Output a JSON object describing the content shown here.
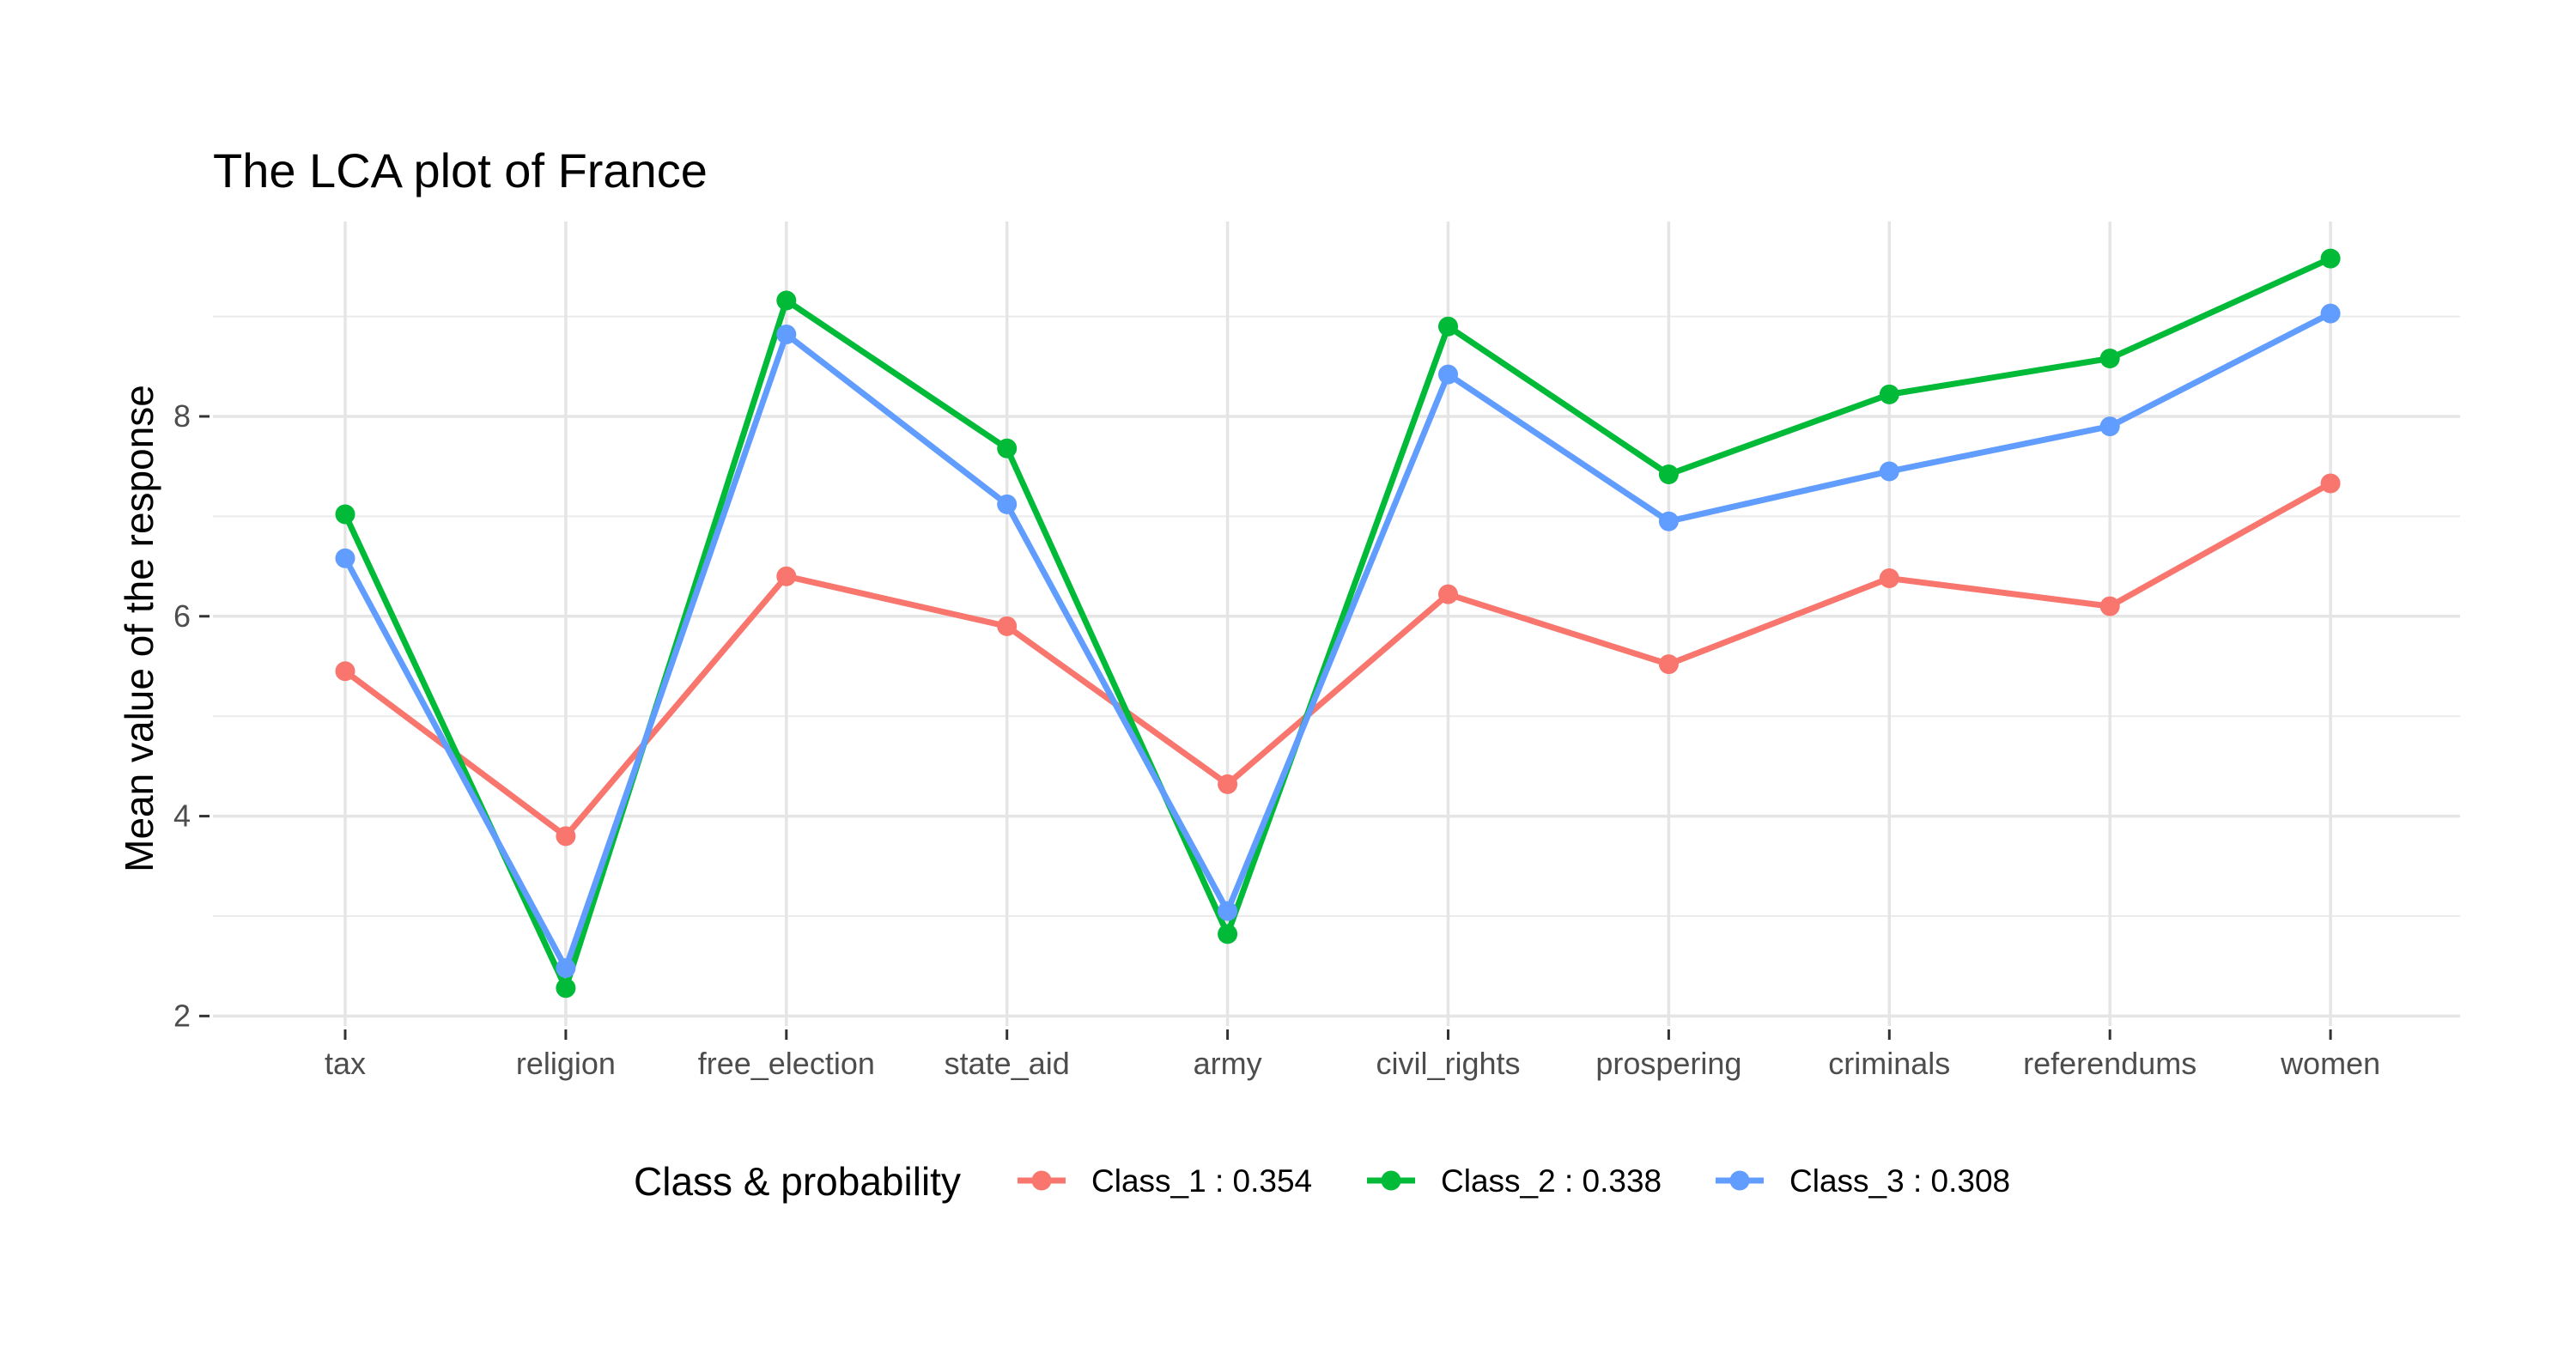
{
  "chart_data": {
    "type": "line",
    "title": "The LCA plot of France",
    "xlabel": "",
    "ylabel": "Mean value of the response",
    "categories": [
      "tax",
      "religion",
      "free_election",
      "state_aid",
      "army",
      "civil_rights",
      "prospering",
      "criminals",
      "referendums",
      "women"
    ],
    "ylim": [
      1.9,
      9.95
    ],
    "yticks": [
      2,
      4,
      6,
      8
    ],
    "grid": true,
    "legend": {
      "title": "Class & probability",
      "placement": "bottom"
    },
    "series": [
      {
        "name": "Class_1 : 0.354",
        "color": "#F8766D",
        "values": [
          5.45,
          3.8,
          6.4,
          5.9,
          4.32,
          6.22,
          5.52,
          6.38,
          6.1,
          7.33
        ]
      },
      {
        "name": "Class_2 : 0.338",
        "color": "#00BA38",
        "values": [
          7.02,
          2.28,
          9.16,
          7.68,
          2.82,
          8.9,
          7.42,
          8.22,
          8.58,
          9.58
        ]
      },
      {
        "name": "Class_3 : 0.308",
        "color": "#619CFF",
        "values": [
          6.58,
          2.48,
          8.82,
          7.12,
          3.05,
          8.42,
          6.95,
          7.45,
          7.9,
          9.03
        ]
      }
    ]
  }
}
